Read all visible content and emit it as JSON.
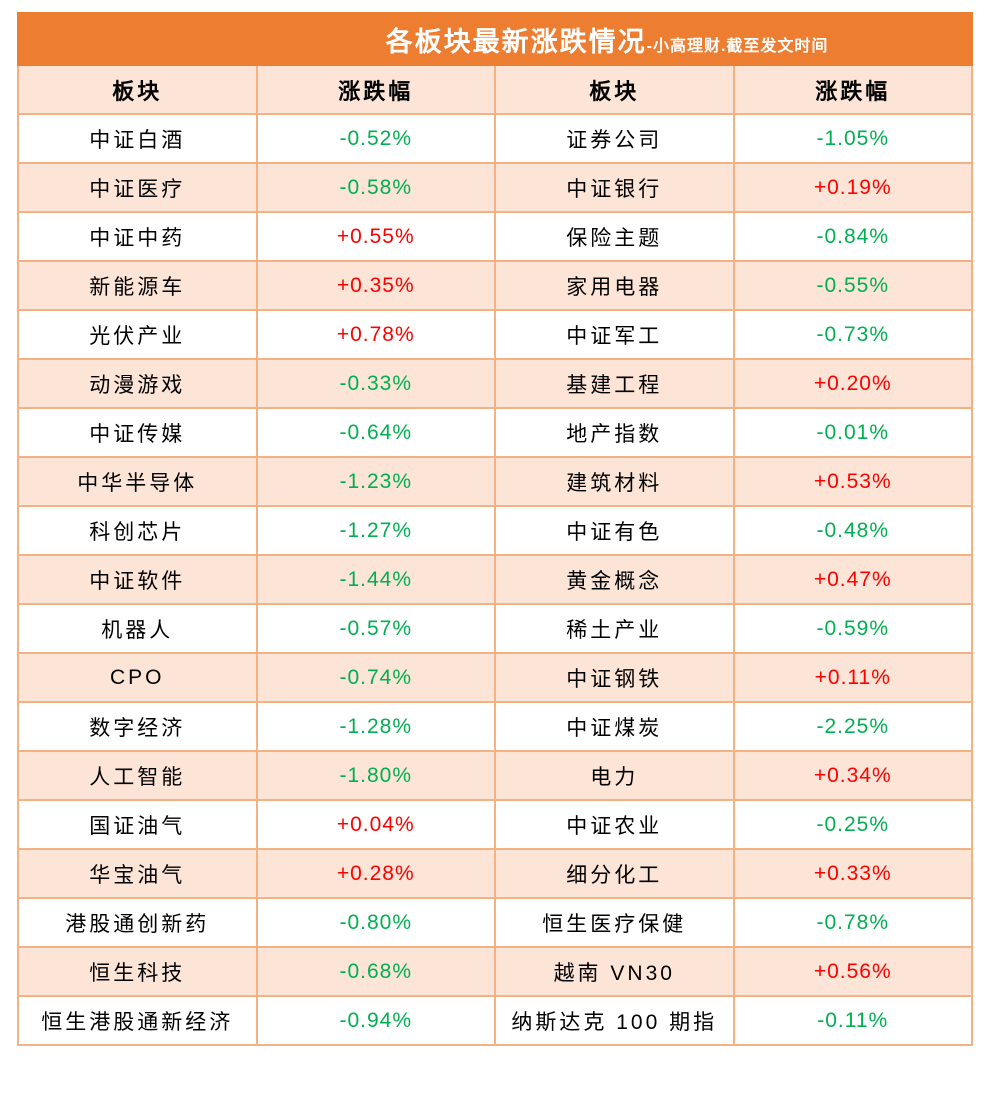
{
  "chart_data": {
    "type": "table",
    "title": "各板块最新涨跌情况",
    "subtitle": "-小高理财.截至发文时间",
    "columns": [
      "板块",
      "涨跌幅",
      "板块",
      "涨跌幅"
    ],
    "rows": [
      [
        "中证白酒",
        "-0.52%",
        "证券公司",
        "-1.05%"
      ],
      [
        "中证医疗",
        "-0.58%",
        "中证银行",
        "+0.19%"
      ],
      [
        "中证中药",
        "+0.55%",
        "保险主题",
        "-0.84%"
      ],
      [
        "新能源车",
        "+0.35%",
        "家用电器",
        "-0.55%"
      ],
      [
        "光伏产业",
        "+0.78%",
        "中证军工",
        "-0.73%"
      ],
      [
        "动漫游戏",
        "-0.33%",
        "基建工程",
        "+0.20%"
      ],
      [
        "中证传媒",
        "-0.64%",
        "地产指数",
        "-0.01%"
      ],
      [
        "中华半导体",
        "-1.23%",
        "建筑材料",
        "+0.53%"
      ],
      [
        "科创芯片",
        "-1.27%",
        "中证有色",
        "-0.48%"
      ],
      [
        "中证软件",
        "-1.44%",
        "黄金概念",
        "+0.47%"
      ],
      [
        "机器人",
        "-0.57%",
        "稀土产业",
        "-0.59%"
      ],
      [
        "CPO",
        "-0.74%",
        "中证钢铁",
        "+0.11%"
      ],
      [
        "数字经济",
        "-1.28%",
        "中证煤炭",
        "-2.25%"
      ],
      [
        "人工智能",
        "-1.80%",
        "电力",
        "+0.34%"
      ],
      [
        "国证油气",
        "+0.04%",
        "中证农业",
        "-0.25%"
      ],
      [
        "华宝油气",
        "+0.28%",
        "细分化工",
        "+0.33%"
      ],
      [
        "港股通创新药",
        "-0.80%",
        "恒生医疗保健",
        "-0.78%"
      ],
      [
        "恒生科技",
        "-0.68%",
        "越南 VN30",
        "+0.56%"
      ],
      [
        "恒生港股通新经济",
        "-0.94%",
        "纳斯达克 100 期指",
        "-0.11%"
      ]
    ],
    "layout": {
      "striped_rows": true,
      "positive_color_meaning": "red = gain (+)",
      "negative_color_meaning": "green = decline (-)"
    }
  },
  "colors": {
    "header_bg": "#ED7D31",
    "stripe_bg": "#FCE4D6",
    "border": "#F4B183",
    "up": "#FF0000",
    "down": "#00B050",
    "title_text": "#FFFFFF",
    "body_text": "#000000"
  }
}
